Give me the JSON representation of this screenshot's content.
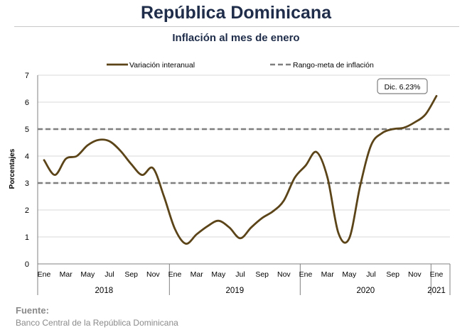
{
  "header": {
    "title": "República Dominicana",
    "subtitle": "Inflación al mes de enero"
  },
  "source": {
    "label": "Fuente:",
    "text": "Banco Central de la República Dominicana"
  },
  "chart_data": {
    "type": "line",
    "ylabel": "Porcentajes",
    "ylim": [
      0,
      7
    ],
    "yticks": [
      0,
      1,
      2,
      3,
      4,
      5,
      6,
      7
    ],
    "grid": true,
    "legend_position": "top",
    "x_month_labels": [
      "Ene",
      "Mar",
      "May",
      "Jul",
      "Sep",
      "Nov",
      "Ene",
      "Mar",
      "May",
      "Jul",
      "Sep",
      "Nov",
      "Ene",
      "Mar",
      "May",
      "Jul",
      "Sep",
      "Nov",
      "Ene"
    ],
    "x_year_labels": [
      "2018",
      "2019",
      "2020",
      "2021"
    ],
    "series": [
      {
        "name": "Variación interanual",
        "color": "#5c4419",
        "style": "solid",
        "values": [
          3.85,
          3.3,
          3.9,
          4.0,
          4.4,
          4.6,
          4.55,
          4.2,
          3.7,
          3.3,
          3.55,
          2.5,
          1.3,
          0.75,
          1.1,
          1.4,
          1.6,
          1.35,
          0.95,
          1.35,
          1.7,
          1.95,
          2.35,
          3.2,
          3.65,
          4.15,
          3.2,
          1.15,
          0.95,
          2.9,
          4.4,
          4.85,
          5.0,
          5.05,
          5.25,
          5.55,
          6.23
        ]
      },
      {
        "name": "Rango-meta de inflación",
        "color": "#7f7f7f",
        "style": "dashed",
        "bands": [
          3,
          5
        ]
      }
    ],
    "annotation": {
      "text": "Dic. 6.23%",
      "value": 6.23
    }
  }
}
